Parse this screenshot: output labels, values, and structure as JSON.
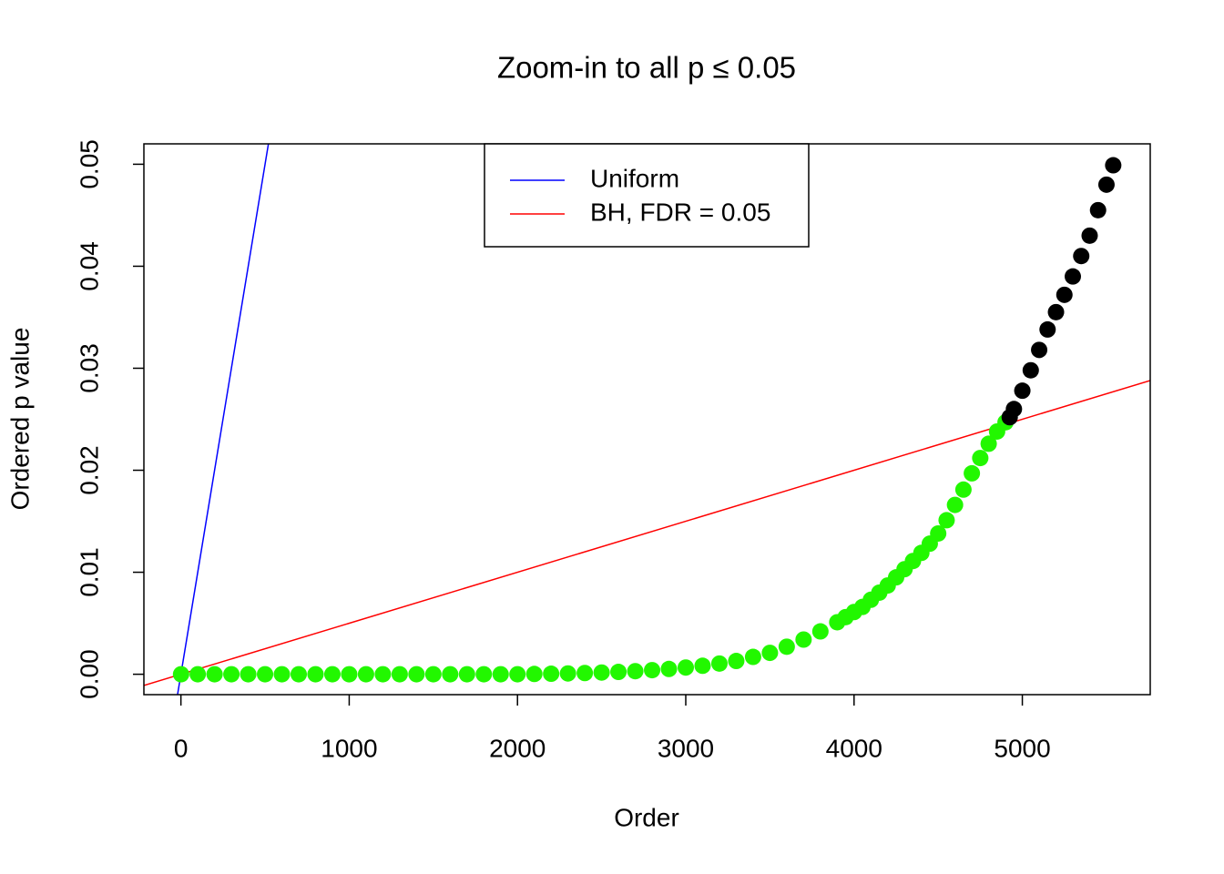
{
  "chart_data": {
    "type": "scatter",
    "title": "Zoom-in to all p ≤ 0.05",
    "x_label": "Order",
    "y_label": "Ordered p value",
    "xlim": [
      -220,
      5760
    ],
    "ylim": [
      -0.002,
      0.052
    ],
    "xticks": [
      0,
      1000,
      2000,
      3000,
      4000,
      5000
    ],
    "yticks": [
      {
        "value": 0,
        "label": "0.00"
      },
      {
        "value": 0.01,
        "label": "0.01"
      },
      {
        "value": 0.02,
        "label": "0.02"
      },
      {
        "value": 0.03,
        "label": "0.03"
      },
      {
        "value": 0.04,
        "label": "0.04"
      },
      {
        "value": 0.05,
        "label": "0.05"
      }
    ],
    "series": [
      {
        "color": "#22f700",
        "x": [
          1,
          100,
          200,
          300,
          400,
          500,
          600,
          700,
          800,
          900,
          1000,
          1100,
          1200,
          1300,
          1400,
          1500,
          1600,
          1700,
          1800,
          1900,
          2000,
          2100,
          2200,
          2300,
          2400,
          2500,
          2600,
          2700,
          2800,
          2900,
          3000,
          3100,
          3200,
          3300,
          3400,
          3500,
          3600,
          3700,
          3800,
          3900,
          3950,
          4000,
          4050,
          4100,
          4150,
          4200,
          4250,
          4300,
          4350,
          4400,
          4450,
          4500,
          4550,
          4600,
          4650,
          4700,
          4750,
          4800,
          4850,
          4900
        ],
        "values": [
          0,
          0,
          0,
          0,
          0,
          0,
          0,
          0,
          0,
          0,
          0,
          0,
          0,
          0,
          0,
          0,
          0,
          0,
          0,
          0,
          0,
          3e-05,
          5e-05,
          8e-05,
          0.00012,
          0.00017,
          0.00023,
          0.0003,
          0.0004,
          0.00052,
          0.00066,
          0.00083,
          0.00105,
          0.0013,
          0.0017,
          0.0021,
          0.0027,
          0.0034,
          0.0042,
          0.0051,
          0.0056,
          0.0061,
          0.0066,
          0.0073,
          0.008,
          0.0087,
          0.0095,
          0.0103,
          0.0111,
          0.0119,
          0.0128,
          0.0138,
          0.0151,
          0.0166,
          0.0181,
          0.0197,
          0.0212,
          0.0226,
          0.0238,
          0.0247
        ]
      },
      {
        "color": "#000000",
        "x": [
          4925,
          4950,
          5000,
          5050,
          5100,
          5150,
          5200,
          5250,
          5300,
          5350,
          5400,
          5450,
          5500,
          5540
        ],
        "values": [
          0.0252,
          0.026,
          0.0278,
          0.0298,
          0.0318,
          0.0338,
          0.0355,
          0.0372,
          0.039,
          0.041,
          0.043,
          0.0455,
          0.048,
          0.0499
        ]
      }
    ],
    "lines": [
      {
        "name": "Uniform",
        "color": "#0000ff",
        "intercept": 0,
        "slope": 0.0001
      },
      {
        "name": "BH, FDR = 0.05",
        "color": "#ff0000",
        "intercept": 0,
        "slope": 5e-06
      }
    ]
  }
}
